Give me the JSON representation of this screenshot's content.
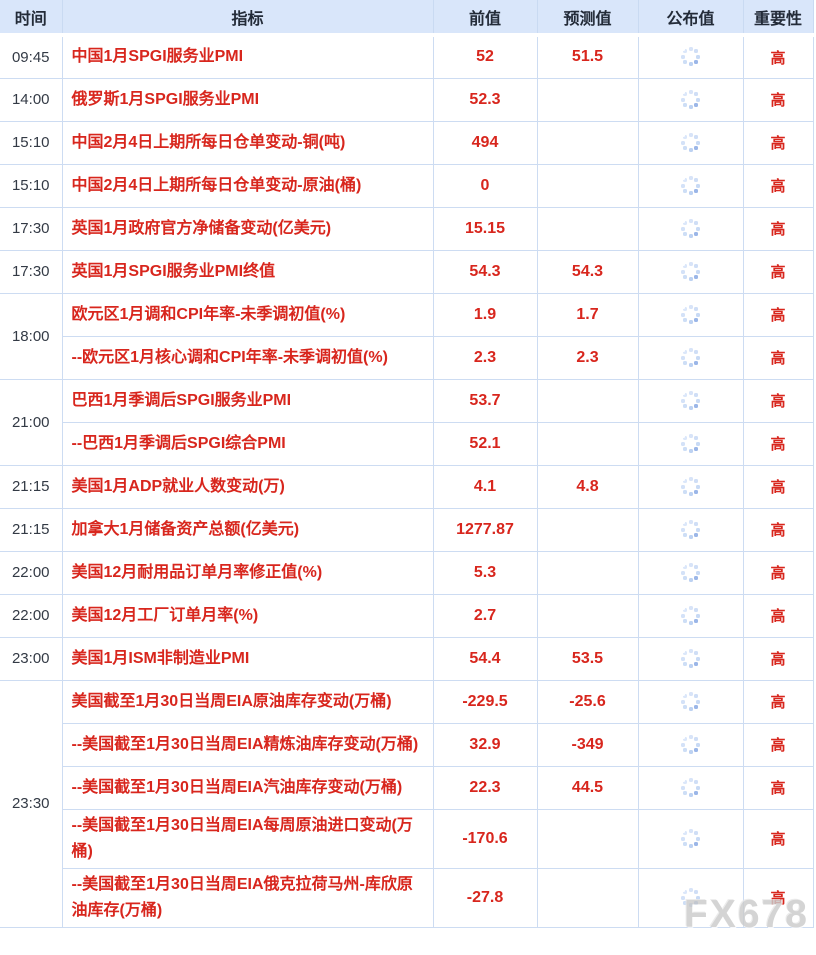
{
  "header": {
    "time": "时间",
    "indicator": "指标",
    "previous": "前值",
    "forecast": "预测值",
    "published": "公布值",
    "importance": "重要性"
  },
  "published_icon": "loading-spinner",
  "watermark": "FX678",
  "colors": {
    "accent_red": "#d8261d",
    "header_bg": "#d9e6fa",
    "border": "#cddcf2",
    "spinner_dot_light": "#cfdef6",
    "spinner_dot_dark": "#9bb6e8",
    "watermark_gray": "#cbcbcb"
  },
  "rows": [
    {
      "time": "09:45",
      "indicator": "中国1月SPGI服务业PMI",
      "previous": "52",
      "forecast": "51.5",
      "importance": "高"
    },
    {
      "time": "14:00",
      "indicator": "俄罗斯1月SPGI服务业PMI",
      "previous": "52.3",
      "forecast": "",
      "importance": "高"
    },
    {
      "time": "15:10",
      "indicator": "中国2月4日上期所每日仓单变动-铜(吨)",
      "previous": "494",
      "forecast": "",
      "importance": "高"
    },
    {
      "time": "15:10",
      "indicator": "中国2月4日上期所每日仓单变动-原油(桶)",
      "previous": "0",
      "forecast": "",
      "importance": "高"
    },
    {
      "time": "17:30",
      "indicator": "英国1月政府官方净储备变动(亿美元)",
      "previous": "15.15",
      "forecast": "",
      "importance": "高"
    },
    {
      "time": "17:30",
      "indicator": "英国1月SPGI服务业PMI终值",
      "previous": "54.3",
      "forecast": "54.3",
      "importance": "高"
    },
    {
      "time": "18:00",
      "indicator": "欧元区1月调和CPI年率-未季调初值(%)",
      "previous": "1.9",
      "forecast": "1.7",
      "importance": "高"
    },
    {
      "indicator": "--欧元区1月核心调和CPI年率-未季调初值(%)",
      "previous": "2.3",
      "forecast": "2.3",
      "importance": "高"
    },
    {
      "time": "21:00",
      "indicator": "巴西1月季调后SPGI服务业PMI",
      "previous": "53.7",
      "forecast": "",
      "importance": "高"
    },
    {
      "indicator": "--巴西1月季调后SPGI综合PMI",
      "previous": "52.1",
      "forecast": "",
      "importance": "高"
    },
    {
      "time": "21:15",
      "indicator": "美国1月ADP就业人数变动(万)",
      "previous": "4.1",
      "forecast": "4.8",
      "importance": "高"
    },
    {
      "time": "21:15",
      "indicator": "加拿大1月储备资产总额(亿美元)",
      "previous": "1277.87",
      "forecast": "",
      "importance": "高"
    },
    {
      "time": "22:00",
      "indicator": "美国12月耐用品订单月率修正值(%)",
      "previous": "5.3",
      "forecast": "",
      "importance": "高"
    },
    {
      "time": "22:00",
      "indicator": "美国12月工厂订单月率(%)",
      "previous": "2.7",
      "forecast": "",
      "importance": "高"
    },
    {
      "time": "23:00",
      "indicator": "美国1月ISM非制造业PMI",
      "previous": "54.4",
      "forecast": "53.5",
      "importance": "高"
    },
    {
      "time": "23:30",
      "indicator": "美国截至1月30日当周EIA原油库存变动(万桶)",
      "previous": "-229.5",
      "forecast": "-25.6",
      "importance": "高"
    },
    {
      "indicator": "--美国截至1月30日当周EIA精炼油库存变动(万桶)",
      "previous": "32.9",
      "forecast": "-349",
      "importance": "高"
    },
    {
      "indicator": "--美国截至1月30日当周EIA汽油库存变动(万桶)",
      "previous": "22.3",
      "forecast": "44.5",
      "importance": "高"
    },
    {
      "indicator": "--美国截至1月30日当周EIA每周原油进口变动(万桶)",
      "previous": "-170.6",
      "forecast": "",
      "importance": "高"
    },
    {
      "indicator": "--美国截至1月30日当周EIA俄克拉荷马州-库欣原油库存(万桶)",
      "previous": "-27.8",
      "forecast": "",
      "importance": "高"
    }
  ]
}
